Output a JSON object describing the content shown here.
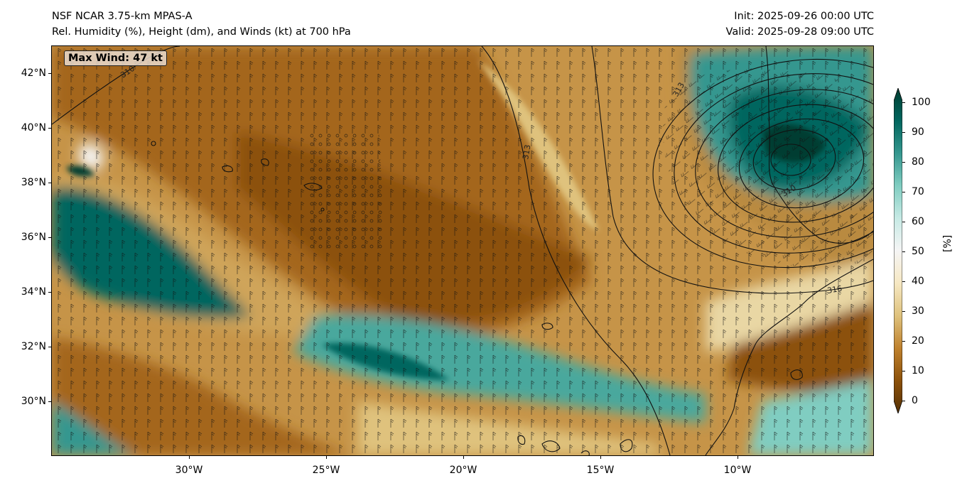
{
  "header": {
    "title_line1": "NSF NCAR 3.75-km MPAS-A",
    "title_line2": "Rel. Humidity (%), Height (dm), and Winds (kt) at 700 hPa",
    "init_text": "Init: 2025-09-26 00:00 UTC",
    "valid_text": "Valid: 2025-09-28 09:00 UTC"
  },
  "map": {
    "max_wind_label": "Max Wind: 47 kt",
    "lat_labels": [
      "42°N",
      "40°N",
      "38°N",
      "36°N",
      "34°N",
      "32°N",
      "30°N"
    ],
    "lon_labels": [
      "30°W",
      "25°W",
      "20°W",
      "15°W",
      "10°W"
    ],
    "height_contour_labels": [
      "310",
      "313",
      "310",
      "313",
      "316"
    ]
  },
  "colorbar": {
    "ticks": [
      "0",
      "10",
      "20",
      "30",
      "40",
      "50",
      "60",
      "70",
      "80",
      "90",
      "100"
    ],
    "unit": "[%]",
    "colors": [
      "#543005",
      "#8c510a",
      "#bf812d",
      "#dfc27d",
      "#f6e8c3",
      "#f5f5f5",
      "#c7eae5",
      "#80cdc1",
      "#35978f",
      "#01665e",
      "#003c30"
    ]
  }
}
